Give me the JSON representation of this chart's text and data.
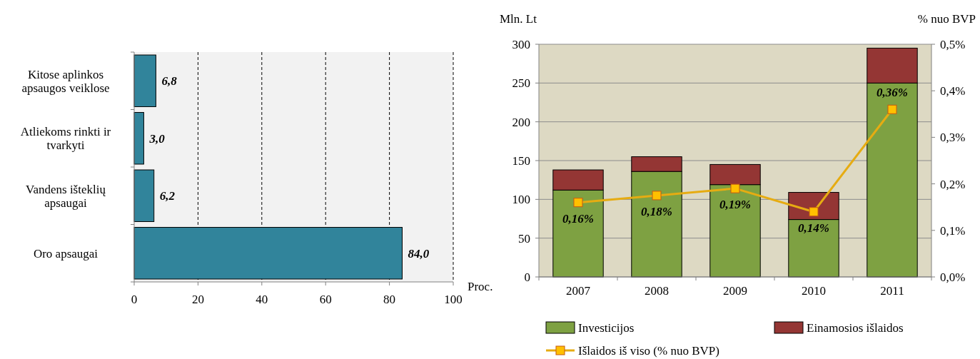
{
  "chart_data": [
    {
      "type": "bar",
      "orientation": "horizontal",
      "categories": [
        "Kitose aplinkos apsaugos veiklose",
        "Atliekoms rinkti ir tvarkyti",
        "Vandens išteklių apsaugai",
        "Oro apsaugai"
      ],
      "values": [
        6.8,
        3.0,
        6.2,
        84.0
      ],
      "value_labels": [
        "6,8",
        "3,0",
        "6,2",
        "84,0"
      ],
      "color": "#31849b",
      "xlabel": "Proc.",
      "xlim": [
        0,
        100
      ],
      "xticks": [
        0,
        20,
        40,
        60,
        80,
        100
      ],
      "grid": "x",
      "line_style": "dashed"
    },
    {
      "type": "bar",
      "stacked": true,
      "categories": [
        "2007",
        "2008",
        "2009",
        "2010",
        "2011"
      ],
      "ylabel": "Mln. Lt",
      "y2label": "% nuo BVP",
      "ylim": [
        0,
        300
      ],
      "yticks": [
        0,
        50,
        100,
        150,
        200,
        250,
        300
      ],
      "y2lim": [
        0,
        0.5
      ],
      "y2ticks": [
        {
          "value": 0,
          "label": "0,0%"
        },
        {
          "value": 0.1,
          "label": "0,1%"
        },
        {
          "value": 0.2,
          "label": "0,2%"
        },
        {
          "value": 0.3,
          "label": "0,3%"
        },
        {
          "value": 0.4,
          "label": "0,4%"
        },
        {
          "value": 0.5,
          "label": "0,5%"
        }
      ],
      "grid": "y",
      "legend": "bottom",
      "series": [
        {
          "name": "Investicijos",
          "color": "#7ea142",
          "values": [
            112,
            136,
            119,
            74,
            250
          ]
        },
        {
          "name": "Einamosios išlaidos",
          "color": "#943634",
          "values": [
            26,
            19,
            26,
            35,
            45
          ]
        },
        {
          "name": "Išlaidos iš viso (% nuo BVP)",
          "type": "line",
          "axis": "y2",
          "marker": "square",
          "color": "#e6ac12",
          "values": [
            0.16,
            0.175,
            0.19,
            0.14,
            0.36
          ],
          "value_labels": [
            "0,16%",
            "0,18%",
            "0,19%",
            "0,14%",
            "0,36%"
          ]
        }
      ]
    }
  ]
}
